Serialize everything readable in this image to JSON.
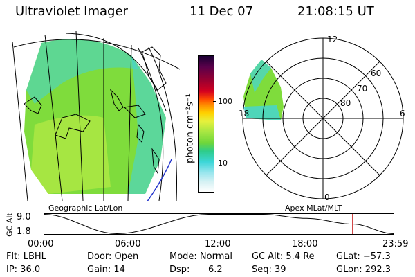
{
  "header": {
    "title": "Ultraviolet Imager",
    "date": "11 Dec 07",
    "time": "21:08:15 UT"
  },
  "colors": {
    "green": "#7fdc3c",
    "green_light": "#a6e642",
    "cyan": "#44d4d8",
    "timeline_marker": "#cc3333",
    "map_blue": "#2233cc"
  },
  "colorbar": {
    "label": "photon cm⁻²s⁻¹",
    "ticks": [
      "100",
      "10"
    ],
    "tick_values": [
      100,
      10
    ],
    "scale": "log",
    "colors_top_to_bottom": [
      "#1a0033",
      "#5a004a",
      "#9a0030",
      "#d40020",
      "#ff4d00",
      "#ff8c00",
      "#ffd200",
      "#e6f03c",
      "#a6e642",
      "#6fd63a",
      "#2ecc8a",
      "#3cd6d8",
      "#9ae6ee",
      "#d8f2f4",
      "#ffffff"
    ]
  },
  "polar_plot": {
    "label": "Apex MLat/MLT",
    "hour_labels": [
      "12",
      "18",
      "6",
      "0"
    ],
    "lat_labels": [
      "60",
      "70",
      "80"
    ]
  },
  "map": {
    "label": "Geographic Lat/Lon"
  },
  "timeline": {
    "ylabel": "GC Alt",
    "y_ticks": [
      "9.0",
      "1.8"
    ],
    "x_ticks": [
      "00:00",
      "06:00",
      "12:00",
      "18:00",
      "23:59"
    ],
    "current_time_hours": 21.14
  },
  "status": {
    "flt": "Flt: LBHL",
    "ip": "IP: 36.0",
    "door": "Door: Open",
    "gain": "Gain: 14",
    "mode": "Mode: Normal",
    "dsp_label": "Dsp:",
    "dsp_value": "6.2",
    "gc_alt": "GC Alt: 5.4 Re",
    "seq": "Seq: 39",
    "glat": "GLat: −57.3",
    "glon": "GLon: 292.3"
  },
  "chart_data": {
    "type": "polar",
    "title": "Ultraviolet Imager",
    "series": [
      {
        "name": "altitude_orbit",
        "x_hours": [
          0,
          5.0,
          11.3,
          15.0,
          18.0,
          21.14,
          23.98
        ],
        "y_Re": [
          9.0,
          1.8,
          9.0,
          9.0,
          7.5,
          5.4,
          1.8
        ]
      }
    ]
  }
}
